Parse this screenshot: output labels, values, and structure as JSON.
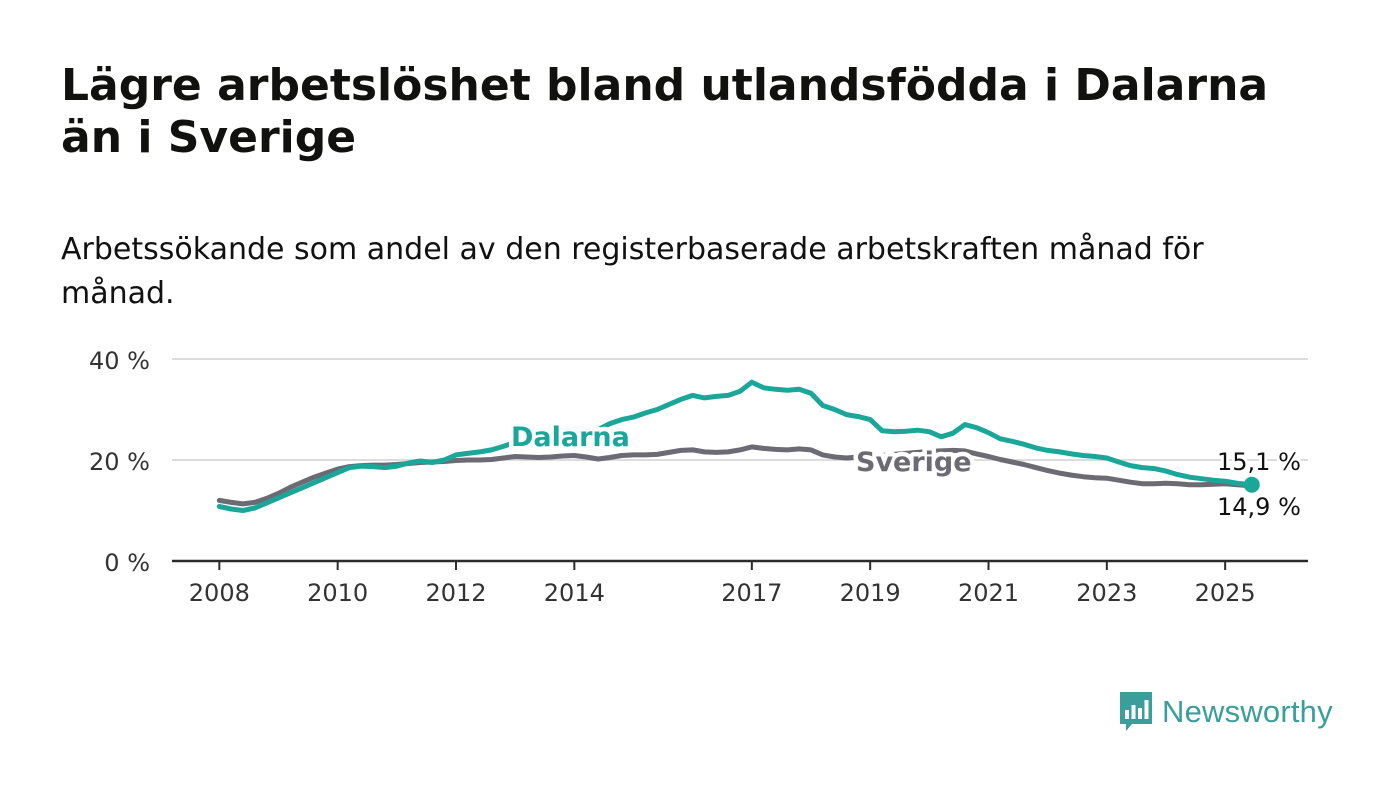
{
  "title": "Lägre arbetslöshet bland utlandsfödda i Dalarna än i Sverige",
  "subtitle": "Arbetssökande som andel av den registerbaserade arbetskraften månad för månad.",
  "brand": {
    "name": "Newsworthy",
    "color": "#3a9e9b"
  },
  "chart_data": {
    "type": "line",
    "title": "Lägre arbetslöshet bland utlandsfödda i Dalarna än i Sverige",
    "subtitle": "Arbetssökande som andel av den registerbaserade arbetskraften månad för månad.",
    "xlabel": "",
    "ylabel": "",
    "x_tick_labels": [
      "2008",
      "2010",
      "2012",
      "2014",
      "2017",
      "2019",
      "2021",
      "2023",
      "2025"
    ],
    "x_tick_values": [
      2008,
      2010,
      2012,
      2014,
      2017,
      2019,
      2021,
      2023,
      2025
    ],
    "y_ticks": [
      {
        "value": 0,
        "label": "0 %"
      },
      {
        "value": 20,
        "label": "20 %"
      },
      {
        "value": 40,
        "label": "40 %"
      }
    ],
    "xlim": [
      2007.2,
      2026.4
    ],
    "ylim": [
      0,
      40
    ],
    "grid": true,
    "series": [
      {
        "name": "Dalarna",
        "color": "#1aa79a",
        "end_label": "15,1 %",
        "points": [
          [
            2008.0,
            10.8
          ],
          [
            2008.2,
            10.3
          ],
          [
            2008.4,
            10.0
          ],
          [
            2008.6,
            10.5
          ],
          [
            2008.8,
            11.5
          ],
          [
            2009.0,
            12.5
          ],
          [
            2009.2,
            13.5
          ],
          [
            2009.4,
            14.5
          ],
          [
            2009.6,
            15.5
          ],
          [
            2009.8,
            16.5
          ],
          [
            2010.0,
            17.5
          ],
          [
            2010.2,
            18.5
          ],
          [
            2010.4,
            18.8
          ],
          [
            2010.6,
            18.7
          ],
          [
            2010.8,
            18.5
          ],
          [
            2011.0,
            18.8
          ],
          [
            2011.2,
            19.4
          ],
          [
            2011.4,
            19.8
          ],
          [
            2011.6,
            19.5
          ],
          [
            2011.8,
            20.0
          ],
          [
            2012.0,
            21.0
          ],
          [
            2012.2,
            21.3
          ],
          [
            2012.4,
            21.6
          ],
          [
            2012.6,
            22.0
          ],
          [
            2012.8,
            22.7
          ],
          [
            2013.0,
            23.5
          ],
          [
            2013.2,
            23.0
          ],
          [
            2013.4,
            23.2
          ],
          [
            2013.6,
            23.6
          ],
          [
            2013.8,
            24.0
          ],
          [
            2014.0,
            24.4
          ],
          [
            2014.2,
            25.0
          ],
          [
            2014.4,
            26.0
          ],
          [
            2014.6,
            27.2
          ],
          [
            2014.8,
            28.0
          ],
          [
            2015.0,
            28.5
          ],
          [
            2015.2,
            29.3
          ],
          [
            2015.4,
            30.0
          ],
          [
            2015.6,
            31.0
          ],
          [
            2015.8,
            32.0
          ],
          [
            2016.0,
            32.8
          ],
          [
            2016.2,
            32.3
          ],
          [
            2016.4,
            32.6
          ],
          [
            2016.6,
            32.8
          ],
          [
            2016.8,
            33.6
          ],
          [
            2017.0,
            35.4
          ],
          [
            2017.2,
            34.3
          ],
          [
            2017.4,
            34.0
          ],
          [
            2017.6,
            33.8
          ],
          [
            2017.8,
            34.0
          ],
          [
            2018.0,
            33.2
          ],
          [
            2018.2,
            30.8
          ],
          [
            2018.4,
            30.0
          ],
          [
            2018.6,
            29.0
          ],
          [
            2018.8,
            28.6
          ],
          [
            2019.0,
            28.0
          ],
          [
            2019.2,
            25.8
          ],
          [
            2019.4,
            25.6
          ],
          [
            2019.6,
            25.7
          ],
          [
            2019.8,
            25.9
          ],
          [
            2020.0,
            25.6
          ],
          [
            2020.2,
            24.6
          ],
          [
            2020.4,
            25.3
          ],
          [
            2020.6,
            27.0
          ],
          [
            2020.8,
            26.4
          ],
          [
            2021.0,
            25.4
          ],
          [
            2021.2,
            24.2
          ],
          [
            2021.4,
            23.7
          ],
          [
            2021.6,
            23.1
          ],
          [
            2021.8,
            22.4
          ],
          [
            2022.0,
            21.9
          ],
          [
            2022.2,
            21.6
          ],
          [
            2022.4,
            21.2
          ],
          [
            2022.6,
            20.9
          ],
          [
            2022.8,
            20.7
          ],
          [
            2023.0,
            20.4
          ],
          [
            2023.2,
            19.6
          ],
          [
            2023.4,
            18.9
          ],
          [
            2023.6,
            18.5
          ],
          [
            2023.8,
            18.3
          ],
          [
            2024.0,
            17.8
          ],
          [
            2024.2,
            17.1
          ],
          [
            2024.4,
            16.6
          ],
          [
            2024.6,
            16.3
          ],
          [
            2024.8,
            16.0
          ],
          [
            2025.0,
            15.8
          ],
          [
            2025.2,
            15.4
          ],
          [
            2025.45,
            15.1
          ]
        ]
      },
      {
        "name": "Sverige",
        "color": "#6c6a73",
        "end_label": "14,9 %",
        "points": [
          [
            2008.0,
            12.0
          ],
          [
            2008.2,
            11.6
          ],
          [
            2008.4,
            11.3
          ],
          [
            2008.6,
            11.6
          ],
          [
            2008.8,
            12.4
          ],
          [
            2009.0,
            13.4
          ],
          [
            2009.2,
            14.6
          ],
          [
            2009.4,
            15.6
          ],
          [
            2009.6,
            16.6
          ],
          [
            2009.8,
            17.4
          ],
          [
            2010.0,
            18.2
          ],
          [
            2010.2,
            18.7
          ],
          [
            2010.4,
            18.9
          ],
          [
            2010.6,
            19.0
          ],
          [
            2010.8,
            19.0
          ],
          [
            2011.0,
            19.1
          ],
          [
            2011.2,
            19.3
          ],
          [
            2011.4,
            19.5
          ],
          [
            2011.6,
            19.6
          ],
          [
            2011.8,
            19.7
          ],
          [
            2012.0,
            19.9
          ],
          [
            2012.2,
            20.0
          ],
          [
            2012.4,
            20.0
          ],
          [
            2012.6,
            20.1
          ],
          [
            2012.8,
            20.4
          ],
          [
            2013.0,
            20.7
          ],
          [
            2013.2,
            20.6
          ],
          [
            2013.4,
            20.5
          ],
          [
            2013.6,
            20.6
          ],
          [
            2013.8,
            20.8
          ],
          [
            2014.0,
            20.9
          ],
          [
            2014.2,
            20.6
          ],
          [
            2014.4,
            20.2
          ],
          [
            2014.6,
            20.5
          ],
          [
            2014.8,
            20.9
          ],
          [
            2015.0,
            21.0
          ],
          [
            2015.2,
            21.0
          ],
          [
            2015.4,
            21.1
          ],
          [
            2015.6,
            21.5
          ],
          [
            2015.8,
            21.9
          ],
          [
            2016.0,
            22.0
          ],
          [
            2016.2,
            21.6
          ],
          [
            2016.4,
            21.5
          ],
          [
            2016.6,
            21.6
          ],
          [
            2016.8,
            22.0
          ],
          [
            2017.0,
            22.6
          ],
          [
            2017.2,
            22.3
          ],
          [
            2017.4,
            22.1
          ],
          [
            2017.6,
            22.0
          ],
          [
            2017.8,
            22.2
          ],
          [
            2018.0,
            22.0
          ],
          [
            2018.2,
            21.0
          ],
          [
            2018.4,
            20.6
          ],
          [
            2018.6,
            20.4
          ],
          [
            2018.8,
            20.6
          ],
          [
            2019.0,
            20.8
          ],
          [
            2019.2,
            20.9
          ],
          [
            2019.4,
            21.1
          ],
          [
            2019.6,
            21.3
          ],
          [
            2019.8,
            21.5
          ],
          [
            2020.0,
            21.7
          ],
          [
            2020.2,
            21.8
          ],
          [
            2020.4,
            21.9
          ],
          [
            2020.6,
            21.8
          ],
          [
            2020.8,
            21.2
          ],
          [
            2021.0,
            20.7
          ],
          [
            2021.2,
            20.1
          ],
          [
            2021.4,
            19.6
          ],
          [
            2021.6,
            19.1
          ],
          [
            2021.8,
            18.5
          ],
          [
            2022.0,
            17.9
          ],
          [
            2022.2,
            17.4
          ],
          [
            2022.4,
            17.0
          ],
          [
            2022.6,
            16.7
          ],
          [
            2022.8,
            16.5
          ],
          [
            2023.0,
            16.4
          ],
          [
            2023.2,
            16.0
          ],
          [
            2023.4,
            15.6
          ],
          [
            2023.6,
            15.3
          ],
          [
            2023.8,
            15.3
          ],
          [
            2024.0,
            15.4
          ],
          [
            2024.2,
            15.3
          ],
          [
            2024.4,
            15.1
          ],
          [
            2024.6,
            15.1
          ],
          [
            2024.8,
            15.2
          ],
          [
            2025.0,
            15.3
          ],
          [
            2025.2,
            15.1
          ],
          [
            2025.45,
            14.9
          ]
        ]
      }
    ]
  }
}
